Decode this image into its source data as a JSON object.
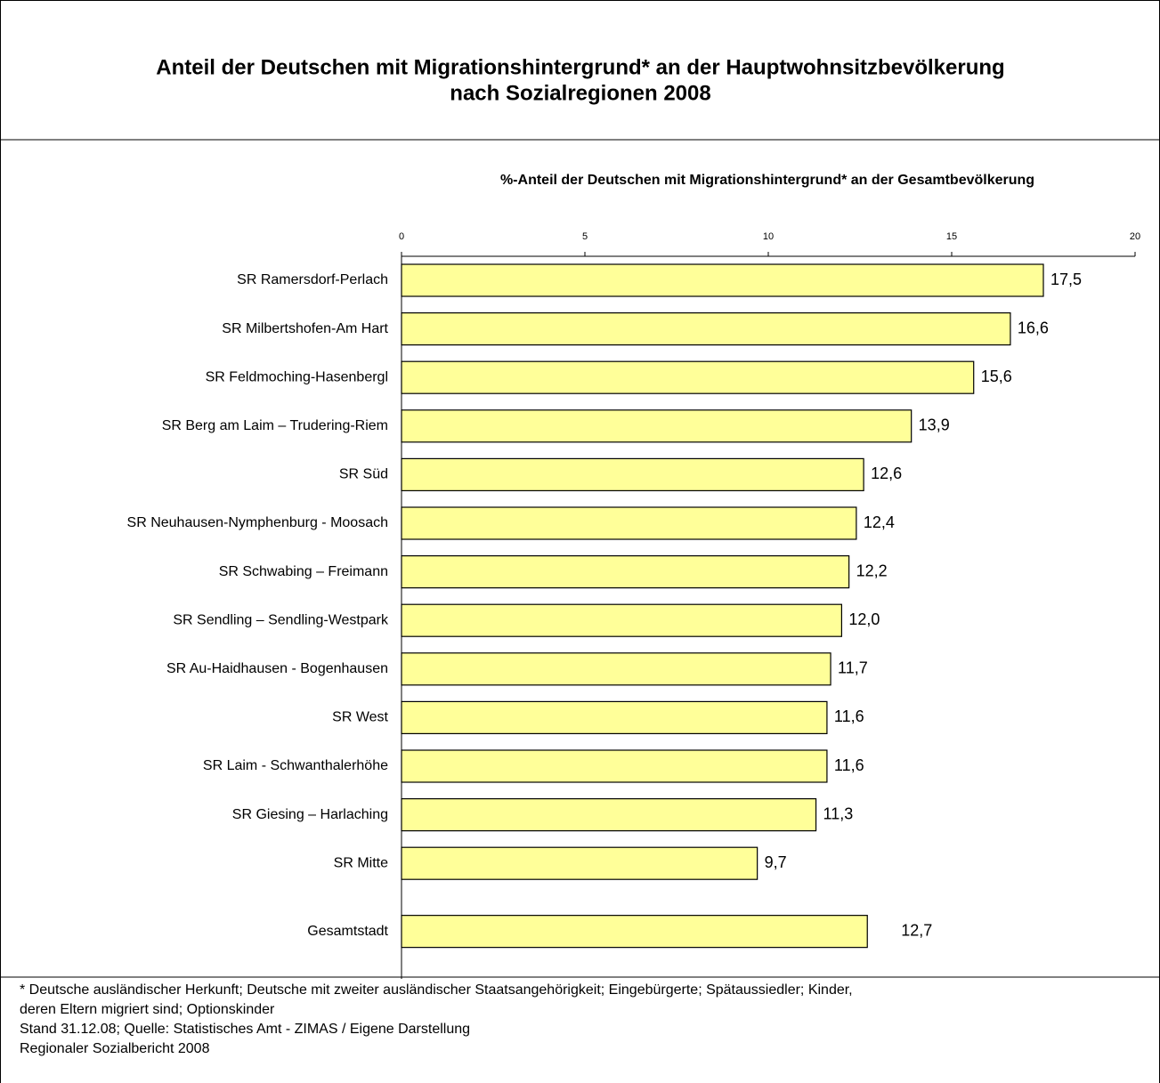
{
  "chart_data": {
    "type": "bar",
    "orientation": "horizontal",
    "title": [
      "Anteil der Deutschen mit Migrationshintergrund* an der Hauptwohnsitzbevölkerung",
      "nach Sozialregionen 2008"
    ],
    "x_label": "%-Anteil der Deutschen mit Migrationshintergrund* an der Gesamtbevölkerung",
    "categories": [
      "SR Ramersdorf-Perlach",
      "SR Milbertshofen-Am Hart",
      "SR Feldmoching-Hasenbergl",
      "SR Berg am Laim – Trudering-Riem",
      "SR Süd",
      "SR Neuhausen-Nymphenburg - Moosach",
      "SR Schwabing – Freimann",
      "SR Sendling – Sendling-Westpark",
      "SR Au-Haidhausen - Bogenhausen",
      "SR West",
      "SR Laim - Schwanthalerhöhe",
      "SR Giesing – Harlaching",
      "SR Mitte",
      "Gesamtstadt"
    ],
    "values": [
      17.5,
      16.6,
      15.6,
      13.9,
      12.6,
      12.4,
      12.2,
      12.0,
      11.7,
      11.6,
      11.6,
      11.3,
      9.7,
      12.7
    ],
    "value_labels": [
      "17,5",
      "16,6",
      "15,6",
      "13,9",
      "12,6",
      "12,4",
      "12,2",
      "12,0",
      "11,7",
      "11,6",
      "11,6",
      "11,3",
      "9,7",
      "12,7"
    ],
    "color": "#ffff99",
    "xlim": [
      0,
      20
    ],
    "xticks": [
      0,
      5,
      10,
      15,
      20
    ],
    "notes": [
      "* Deutsche ausländischer Herkunft; Deutsche mit zweiter ausländischer Staatsangehörigkeit; Eingebürgerte; Spätaussiedler; Kinder,",
      "deren Eltern migriert sind; Optionskinder",
      "Stand 31.12.08; Quelle: Statistisches Amt - ZIMAS / Eigene Darstellung",
      "Regionaler Sozialbericht 2008"
    ]
  }
}
